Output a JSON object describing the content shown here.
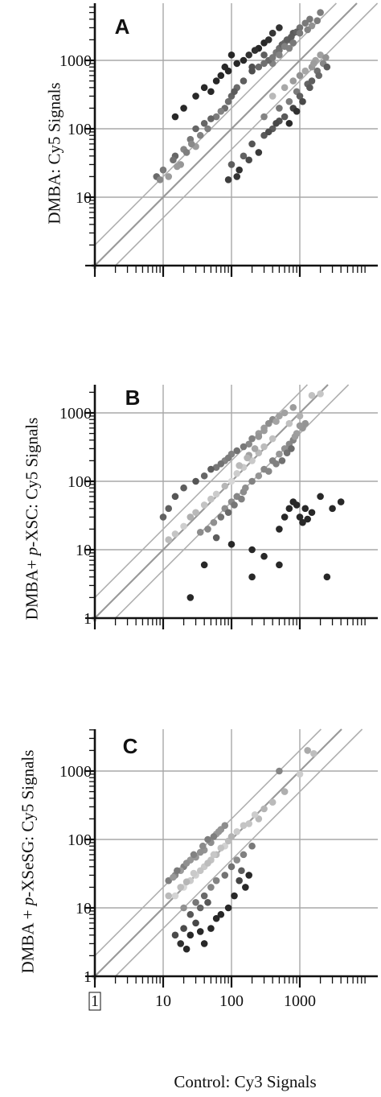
{
  "figure": {
    "xlabel": "Control: Cy3 Signals",
    "x_tick_labels": [
      "1",
      "10",
      "100",
      "1000"
    ]
  },
  "panels": [
    {
      "label": "A",
      "ylabel": "DMBA: Cy5 Signals",
      "y_tick_labels": [
        "10",
        "100",
        "1000"
      ]
    },
    {
      "label": "B",
      "ylabel_prefix": "DMBA+ ",
      "ylabel_italic": "p",
      "ylabel_suffix": "-XSC: Cy5 Signals",
      "y_tick_labels": [
        "1",
        "10",
        "100",
        "1000"
      ]
    },
    {
      "label": "C",
      "ylabel_prefix": "DMBA + ",
      "ylabel_italic": "p",
      "ylabel_suffix": "-XSeSG: Cy5 Signals",
      "y_tick_labels": [
        "1",
        "10",
        "100",
        "1000"
      ]
    }
  ],
  "chart_data": [
    {
      "type": "scatter",
      "title": "A",
      "xlabel": "",
      "ylabel": "DMBA: Cy5 Signals",
      "x_scale": "log",
      "y_scale": "log",
      "xlim": [
        1,
        7000
      ],
      "ylim": [
        1,
        5000
      ],
      "grid": true,
      "reference_lines": [
        "y = x",
        "y = 2x",
        "y = x/2"
      ],
      "points": [
        [
          300,
          1200
        ],
        [
          500,
          1500
        ],
        [
          400,
          900
        ],
        [
          700,
          2000
        ],
        [
          200,
          700
        ],
        [
          1000,
          3000
        ],
        [
          600,
          1800
        ],
        [
          350,
          1000
        ],
        [
          800,
          2500
        ],
        [
          450,
          1300
        ],
        [
          250,
          800
        ],
        [
          550,
          1700
        ],
        [
          900,
          2600
        ],
        [
          1200,
          3500
        ],
        [
          300,
          900
        ],
        [
          150,
          500
        ],
        [
          650,
          2000
        ],
        [
          750,
          2200
        ],
        [
          400,
          1100
        ],
        [
          500,
          1400
        ],
        [
          100,
          300
        ],
        [
          80,
          200
        ],
        [
          120,
          400
        ],
        [
          60,
          150
        ],
        [
          40,
          120
        ],
        [
          50,
          140
        ],
        [
          70,
          180
        ],
        [
          30,
          100
        ],
        [
          90,
          250
        ],
        [
          110,
          350
        ],
        [
          20,
          50
        ],
        [
          25,
          70
        ],
        [
          35,
          80
        ],
        [
          45,
          100
        ],
        [
          15,
          40
        ],
        [
          1400,
          4000
        ],
        [
          1000,
          2500
        ],
        [
          700,
          1500
        ],
        [
          1800,
          3800
        ],
        [
          1500,
          3200
        ],
        [
          2000,
          5000
        ],
        [
          1300,
          2800
        ],
        [
          800,
          1800
        ],
        [
          600,
          1600
        ],
        [
          500,
          1200
        ],
        [
          200,
          800
        ],
        [
          150,
          1000
        ],
        [
          300,
          1800
        ],
        [
          100,
          1200
        ],
        [
          80,
          800
        ],
        [
          60,
          500
        ],
        [
          40,
          400
        ],
        [
          30,
          300
        ],
        [
          20,
          200
        ],
        [
          15,
          150
        ],
        [
          250,
          1500
        ],
        [
          400,
          2500
        ],
        [
          500,
          3000
        ],
        [
          350,
          2000
        ],
        [
          120,
          900
        ],
        [
          180,
          1200
        ],
        [
          220,
          1400
        ],
        [
          70,
          600
        ],
        [
          50,
          350
        ],
        [
          90,
          700
        ],
        [
          400,
          300
        ],
        [
          600,
          400
        ],
        [
          800,
          500
        ],
        [
          1000,
          600
        ],
        [
          700,
          250
        ],
        [
          900,
          350
        ],
        [
          500,
          200
        ],
        [
          300,
          150
        ],
        [
          1200,
          700
        ],
        [
          1500,
          800
        ],
        [
          1000,
          300
        ],
        [
          1300,
          450
        ],
        [
          800,
          200
        ],
        [
          600,
          150
        ],
        [
          1100,
          250
        ],
        [
          700,
          120
        ],
        [
          900,
          180
        ],
        [
          400,
          100
        ],
        [
          300,
          80
        ],
        [
          500,
          130
        ],
        [
          200,
          60
        ],
        [
          150,
          40
        ],
        [
          250,
          45
        ],
        [
          100,
          30
        ],
        [
          130,
          25
        ],
        [
          180,
          35
        ],
        [
          120,
          20
        ],
        [
          90,
          18
        ],
        [
          350,
          90
        ],
        [
          450,
          120
        ],
        [
          1700,
          1000
        ],
        [
          2000,
          1200
        ],
        [
          1800,
          700
        ],
        [
          1500,
          500
        ],
        [
          2200,
          900
        ],
        [
          1900,
          600
        ],
        [
          1400,
          400
        ],
        [
          2500,
          800
        ],
        [
          2400,
          1100
        ],
        [
          1600,
          900
        ],
        [
          12,
          20
        ],
        [
          14,
          35
        ],
        [
          8,
          20
        ],
        [
          30,
          55
        ],
        [
          10,
          25
        ],
        [
          18,
          30
        ],
        [
          22,
          45
        ],
        [
          26,
          60
        ],
        [
          16,
          28
        ],
        [
          9,
          18
        ]
      ]
    },
    {
      "type": "scatter",
      "title": "B",
      "xlabel": "",
      "ylabel": "DMBA+ p-XSC: Cy5 Signals",
      "x_scale": "log",
      "y_scale": "log",
      "xlim": [
        1,
        7000
      ],
      "ylim": [
        1,
        2000
      ],
      "grid": true,
      "reference_lines": [
        "y = x",
        "y = 2x",
        "y = x/2"
      ],
      "points": [
        [
          100,
          100
        ],
        [
          150,
          160
        ],
        [
          200,
          200
        ],
        [
          300,
          320
        ],
        [
          80,
          85
        ],
        [
          60,
          65
        ],
        [
          50,
          55
        ],
        [
          400,
          420
        ],
        [
          250,
          260
        ],
        [
          120,
          130
        ],
        [
          40,
          45
        ],
        [
          30,
          35
        ],
        [
          25,
          30
        ],
        [
          20,
          22
        ],
        [
          15,
          17
        ],
        [
          12,
          14
        ],
        [
          700,
          700
        ],
        [
          1000,
          900
        ],
        [
          1500,
          1800
        ],
        [
          2000,
          1900
        ],
        [
          180,
          350
        ],
        [
          120,
          280
        ],
        [
          80,
          200
        ],
        [
          60,
          160
        ],
        [
          40,
          120
        ],
        [
          30,
          100
        ],
        [
          20,
          80
        ],
        [
          15,
          60
        ],
        [
          12,
          40
        ],
        [
          10,
          30
        ],
        [
          250,
          500
        ],
        [
          300,
          550
        ],
        [
          350,
          700
        ],
        [
          200,
          420
        ],
        [
          150,
          320
        ],
        [
          100,
          250
        ],
        [
          90,
          220
        ],
        [
          70,
          180
        ],
        [
          50,
          150
        ],
        [
          500,
          900
        ],
        [
          600,
          1000
        ],
        [
          400,
          800
        ],
        [
          800,
          1200
        ],
        [
          300,
          600
        ],
        [
          450,
          750
        ],
        [
          250,
          450
        ],
        [
          220,
          300
        ],
        [
          180,
          240
        ],
        [
          130,
          170
        ],
        [
          170,
          220
        ],
        [
          300,
          150
        ],
        [
          400,
          200
        ],
        [
          500,
          250
        ],
        [
          600,
          300
        ],
        [
          700,
          350
        ],
        [
          200,
          100
        ],
        [
          250,
          120
        ],
        [
          150,
          70
        ],
        [
          100,
          50
        ],
        [
          800,
          400
        ],
        [
          350,
          140
        ],
        [
          450,
          180
        ],
        [
          550,
          200
        ],
        [
          650,
          260
        ],
        [
          750,
          300
        ],
        [
          900,
          500
        ],
        [
          1100,
          600
        ],
        [
          1200,
          700
        ],
        [
          1000,
          650
        ],
        [
          850,
          450
        ],
        [
          1000,
          30
        ],
        [
          1100,
          25
        ],
        [
          1200,
          40
        ],
        [
          900,
          45
        ],
        [
          1500,
          35
        ],
        [
          800,
          50
        ],
        [
          1300,
          28
        ],
        [
          2000,
          60
        ],
        [
          3000,
          40
        ],
        [
          4000,
          50
        ],
        [
          600,
          30
        ],
        [
          700,
          40
        ],
        [
          500,
          20
        ],
        [
          300,
          8
        ],
        [
          200,
          10
        ],
        [
          100,
          12
        ],
        [
          60,
          15
        ],
        [
          40,
          6
        ],
        [
          200,
          4
        ],
        [
          500,
          6
        ],
        [
          2500,
          4
        ],
        [
          25,
          2
        ],
        [
          80,
          40
        ],
        [
          120,
          60
        ],
        [
          90,
          35
        ],
        [
          140,
          55
        ],
        [
          160,
          80
        ],
        [
          110,
          45
        ],
        [
          70,
          30
        ],
        [
          55,
          25
        ],
        [
          45,
          20
        ],
        [
          35,
          18
        ]
      ]
    },
    {
      "type": "scatter",
      "title": "C",
      "xlabel": "Control: Cy3 Signals",
      "ylabel": "DMBA + p-XSeSG: Cy5 Signals",
      "x_scale": "log",
      "y_scale": "log",
      "xlim": [
        1,
        7000
      ],
      "ylim": [
        1,
        5000
      ],
      "grid": true,
      "reference_lines": [
        "y = x",
        "y = 2x",
        "y = x/2"
      ],
      "points": [
        [
          20,
          20
        ],
        [
          30,
          30
        ],
        [
          40,
          40
        ],
        [
          50,
          50
        ],
        [
          60,
          60
        ],
        [
          80,
          80
        ],
        [
          25,
          25
        ],
        [
          35,
          35
        ],
        [
          45,
          45
        ],
        [
          15,
          15
        ],
        [
          12,
          15
        ],
        [
          18,
          20
        ],
        [
          22,
          24
        ],
        [
          28,
          32
        ],
        [
          55,
          60
        ],
        [
          70,
          75
        ],
        [
          90,
          95
        ],
        [
          100,
          110
        ],
        [
          120,
          130
        ],
        [
          150,
          160
        ],
        [
          15,
          30
        ],
        [
          20,
          40
        ],
        [
          25,
          50
        ],
        [
          30,
          55
        ],
        [
          40,
          70
        ],
        [
          12,
          25
        ],
        [
          18,
          35
        ],
        [
          22,
          45
        ],
        [
          35,
          65
        ],
        [
          50,
          90
        ],
        [
          60,
          120
        ],
        [
          70,
          140
        ],
        [
          80,
          160
        ],
        [
          45,
          100
        ],
        [
          55,
          110
        ],
        [
          65,
          130
        ],
        [
          38,
          80
        ],
        [
          28,
          60
        ],
        [
          16,
          35
        ],
        [
          14,
          28
        ],
        [
          20,
          10
        ],
        [
          30,
          12
        ],
        [
          40,
          15
        ],
        [
          50,
          20
        ],
        [
          60,
          25
        ],
        [
          80,
          30
        ],
        [
          100,
          40
        ],
        [
          25,
          8
        ],
        [
          35,
          10
        ],
        [
          45,
          12
        ],
        [
          20,
          5
        ],
        [
          25,
          4
        ],
        [
          30,
          6
        ],
        [
          18,
          3
        ],
        [
          22,
          2.5
        ],
        [
          15,
          4
        ],
        [
          40,
          3
        ],
        [
          50,
          5
        ],
        [
          60,
          7
        ],
        [
          35,
          4.5
        ],
        [
          120,
          50
        ],
        [
          150,
          60
        ],
        [
          200,
          80
        ],
        [
          180,
          30
        ],
        [
          160,
          20
        ],
        [
          130,
          25
        ],
        [
          110,
          15
        ],
        [
          90,
          10
        ],
        [
          70,
          8
        ],
        [
          140,
          35
        ],
        [
          250,
          200
        ],
        [
          400,
          350
        ],
        [
          600,
          500
        ],
        [
          1000,
          900
        ],
        [
          1300,
          2000
        ],
        [
          1600,
          1800
        ],
        [
          500,
          1000
        ],
        [
          300,
          280
        ],
        [
          220,
          230
        ],
        [
          180,
          170
        ]
      ]
    }
  ]
}
